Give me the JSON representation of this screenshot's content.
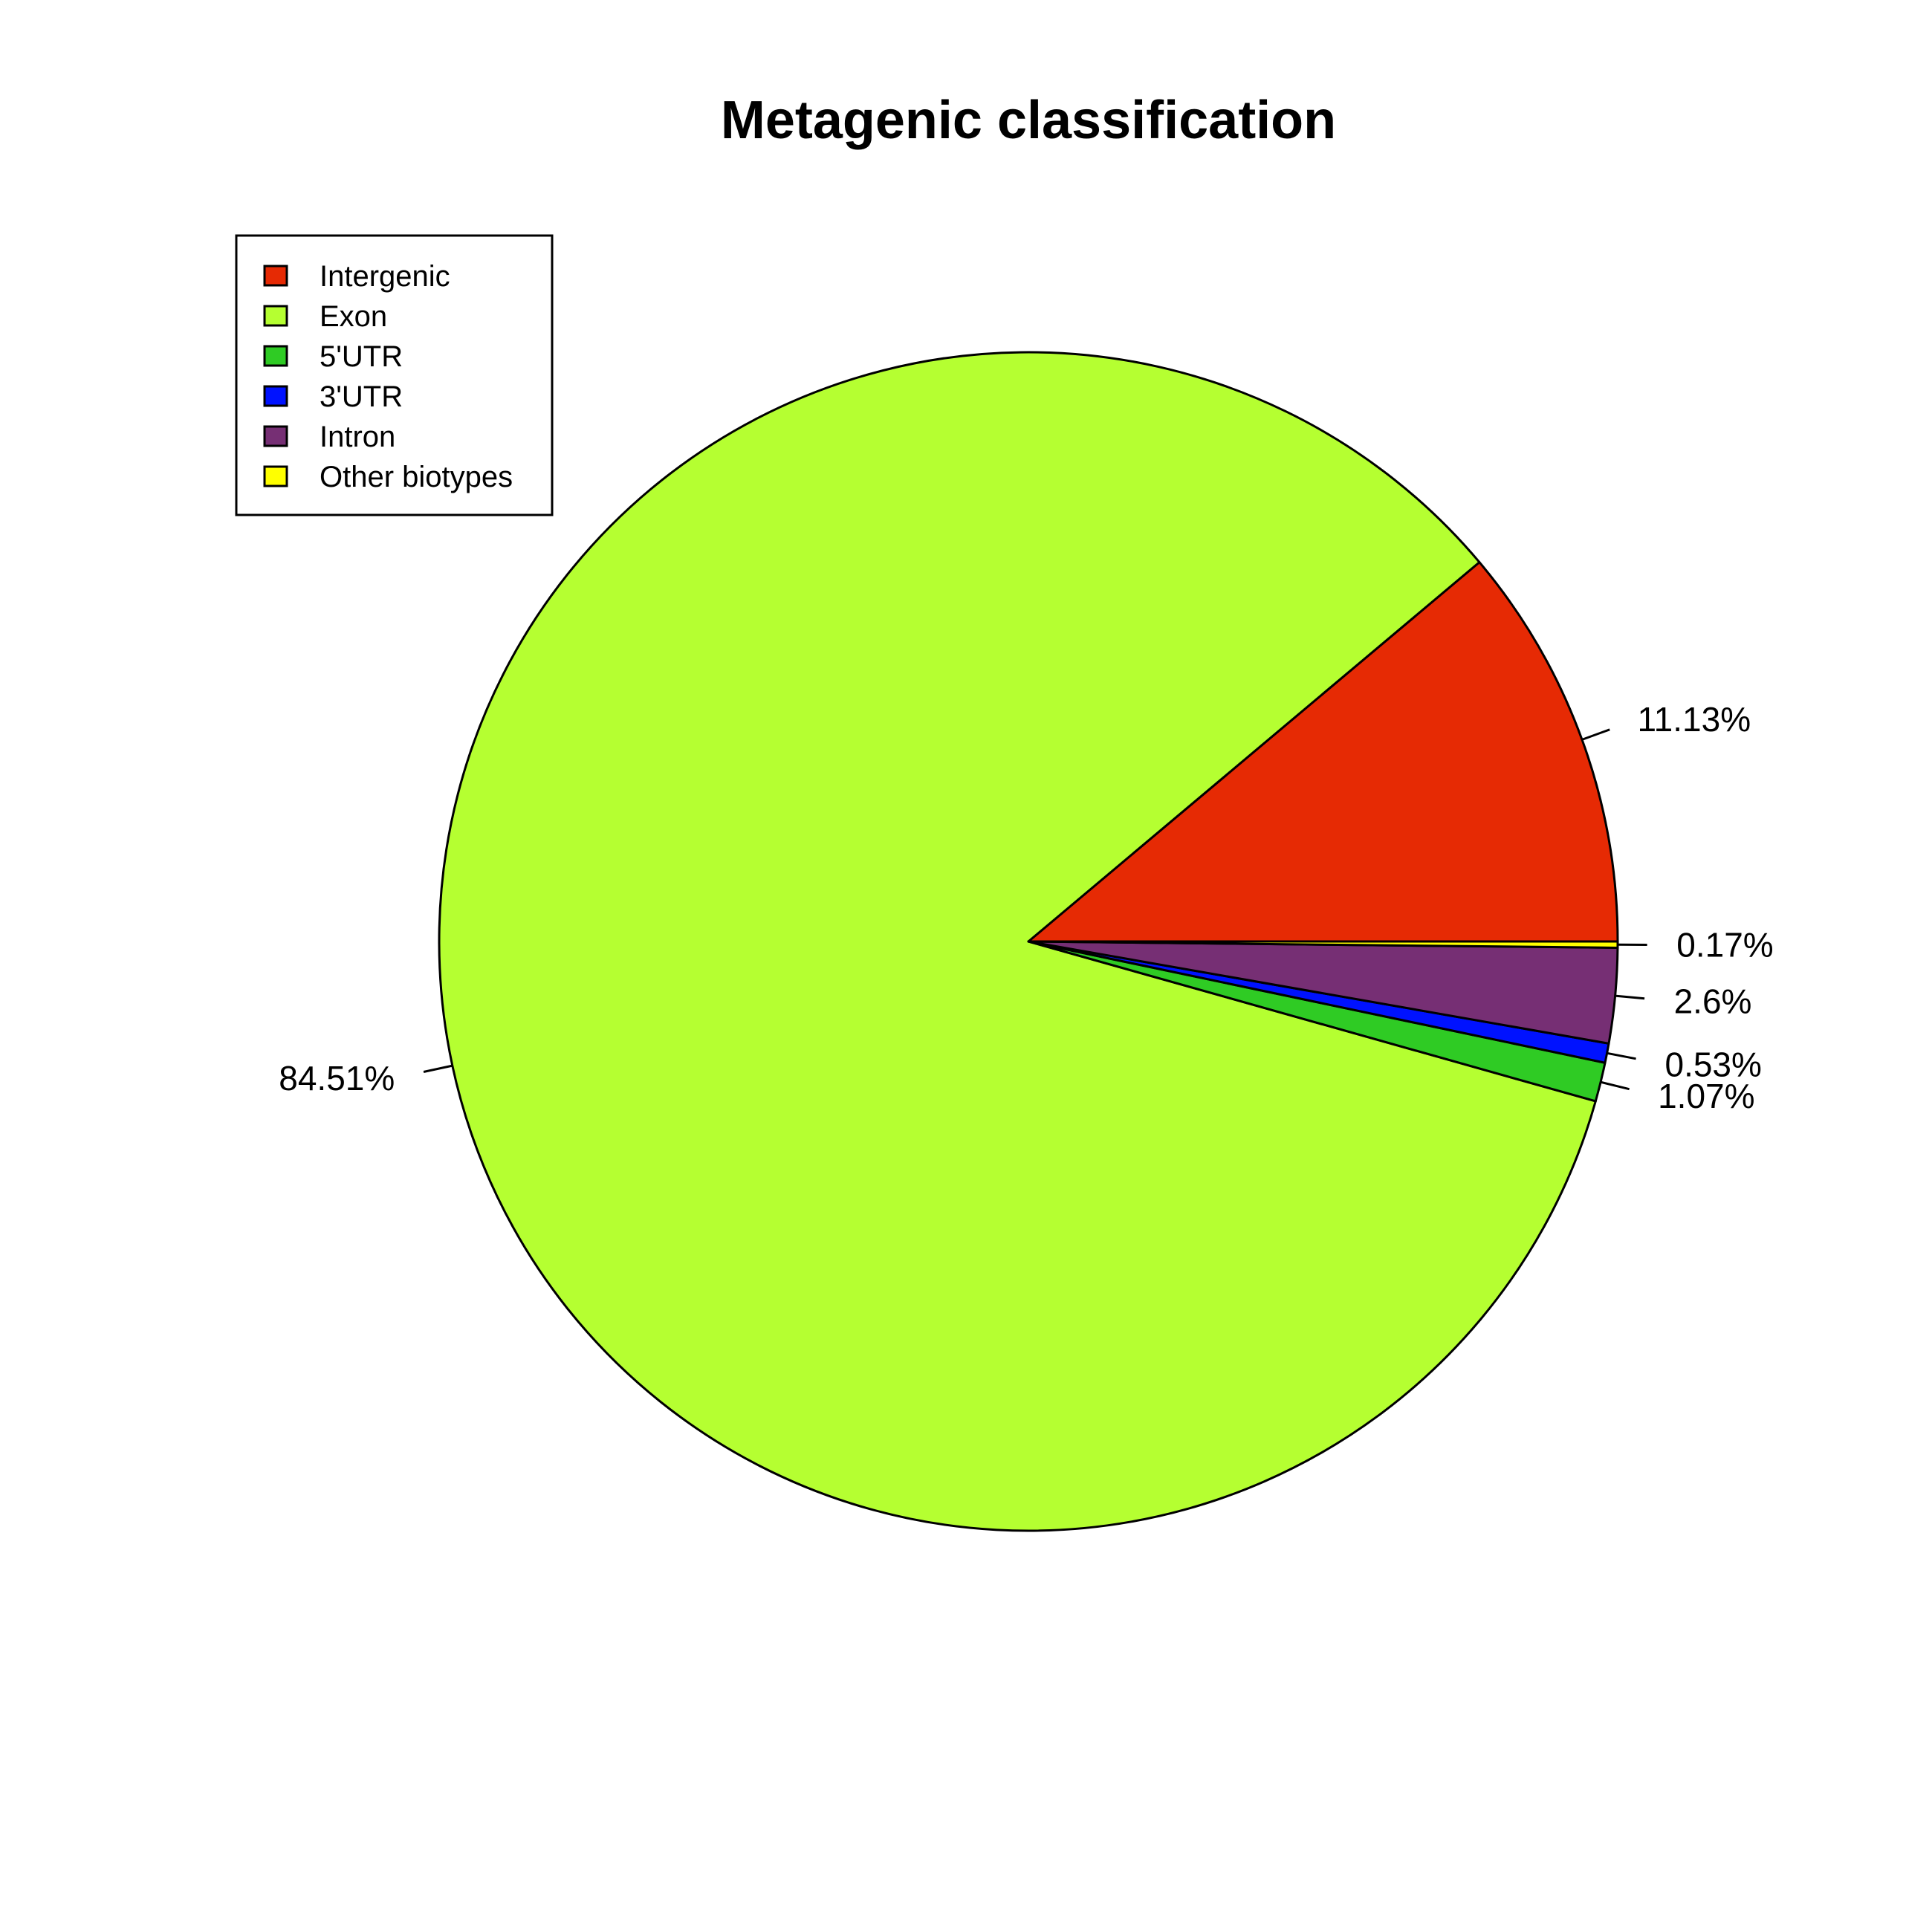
{
  "chart_data": {
    "type": "pie",
    "title": "Metagenic classification",
    "legend_position": "top-left",
    "start_angle_deg": 0,
    "direction": "counterclockwise",
    "slices": [
      {
        "name": "Intergenic",
        "value": 11.13,
        "label": "11.13%",
        "color": "#E62A04"
      },
      {
        "name": "Exon",
        "value": 84.51,
        "label": "84.51%",
        "color": "#B5FF31"
      },
      {
        "name": "5'UTR",
        "value": 1.07,
        "label": "1.07%",
        "color": "#2FCB24"
      },
      {
        "name": "3'UTR",
        "value": 0.53,
        "label": "0.53%",
        "color": "#0012FF"
      },
      {
        "name": "Intron",
        "value": 2.6,
        "label": "2.6%",
        "color": "#762F74"
      },
      {
        "name": "Other biotypes",
        "value": 0.17,
        "label": "0.17%",
        "color": "#FFFF00"
      }
    ]
  }
}
